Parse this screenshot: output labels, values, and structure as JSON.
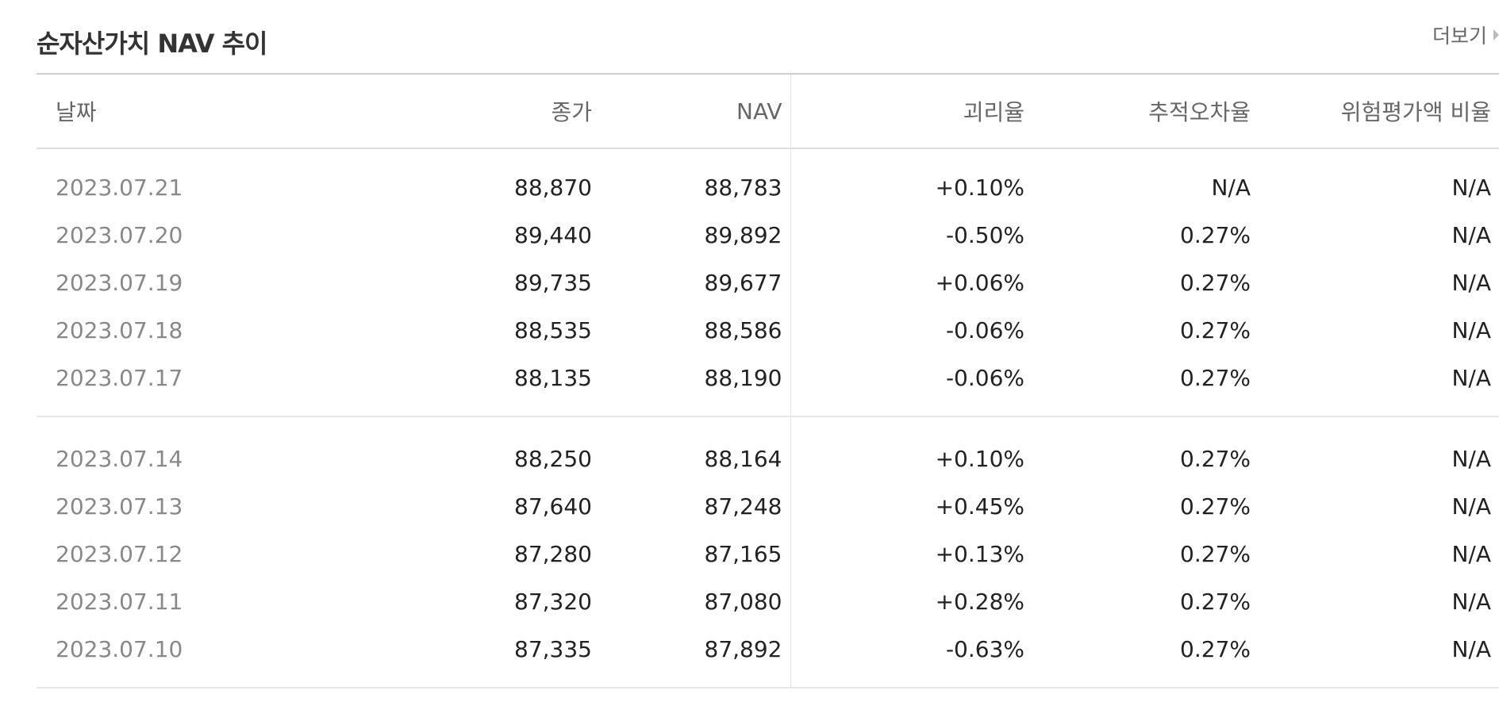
{
  "section": {
    "title": "순자산가치 NAV 추이",
    "more_label": "더보기"
  },
  "table": {
    "headers": {
      "date": "날짜",
      "close": "종가",
      "nav": "NAV",
      "premium": "괴리율",
      "tracking_error": "추적오차율",
      "risk_ratio": "위험평가액 비율"
    },
    "rows": [
      {
        "date": "2023.07.21",
        "close": "88,870",
        "nav": "88,783",
        "premium": "+0.10%",
        "tracking_error": "N/A",
        "risk_ratio": "N/A"
      },
      {
        "date": "2023.07.20",
        "close": "89,440",
        "nav": "89,892",
        "premium": "-0.50%",
        "tracking_error": "0.27%",
        "risk_ratio": "N/A"
      },
      {
        "date": "2023.07.19",
        "close": "89,735",
        "nav": "89,677",
        "premium": "+0.06%",
        "tracking_error": "0.27%",
        "risk_ratio": "N/A"
      },
      {
        "date": "2023.07.18",
        "close": "88,535",
        "nav": "88,586",
        "premium": "-0.06%",
        "tracking_error": "0.27%",
        "risk_ratio": "N/A"
      },
      {
        "date": "2023.07.17",
        "close": "88,135",
        "nav": "88,190",
        "premium": "-0.06%",
        "tracking_error": "0.27%",
        "risk_ratio": "N/A"
      },
      {
        "date": "2023.07.14",
        "close": "88,250",
        "nav": "88,164",
        "premium": "+0.10%",
        "tracking_error": "0.27%",
        "risk_ratio": "N/A"
      },
      {
        "date": "2023.07.13",
        "close": "87,640",
        "nav": "87,248",
        "premium": "+0.45%",
        "tracking_error": "0.27%",
        "risk_ratio": "N/A"
      },
      {
        "date": "2023.07.12",
        "close": "87,280",
        "nav": "87,165",
        "premium": "+0.13%",
        "tracking_error": "0.27%",
        "risk_ratio": "N/A"
      },
      {
        "date": "2023.07.11",
        "close": "87,320",
        "nav": "87,080",
        "premium": "+0.28%",
        "tracking_error": "0.27%",
        "risk_ratio": "N/A"
      },
      {
        "date": "2023.07.10",
        "close": "87,335",
        "nav": "87,892",
        "premium": "-0.63%",
        "tracking_error": "0.27%",
        "risk_ratio": "N/A"
      }
    ]
  },
  "colors": {
    "positive": "#e01f26",
    "negative": "#1f5fc9"
  }
}
